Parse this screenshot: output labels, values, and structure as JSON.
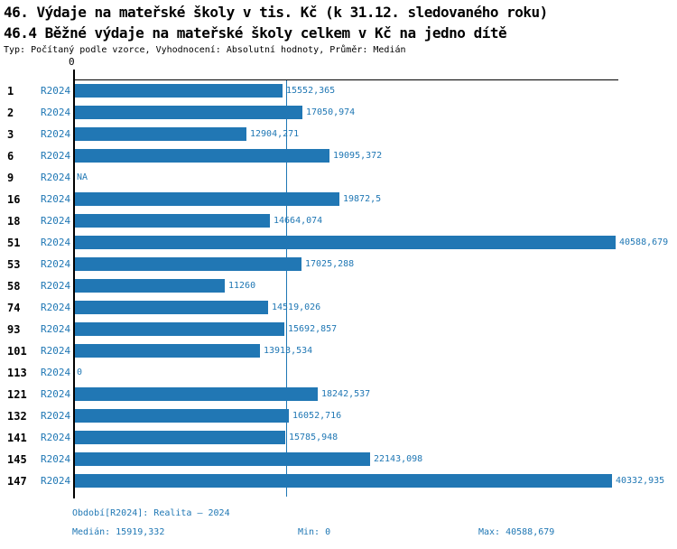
{
  "header": {
    "title": "46. Výdaje na mateřské školy v tis. Kč (k 31.12. sledovaného roku)",
    "subtitle": "46.4 Běžné výdaje na mateřské školy celkem v Kč na jedno dítě",
    "meta": "Typ: Počítaný podle vzorce, Vyhodnocení: Absolutní hodnoty, Průměr: Medián"
  },
  "chart_data": {
    "type": "bar",
    "orientation": "horizontal",
    "axis_zero_label": "0",
    "xlim": [
      0,
      40588.679
    ],
    "median_value": 15919.332,
    "grid": false,
    "legend": "none",
    "series_name": "R2024",
    "categories": [
      "1",
      "2",
      "3",
      "6",
      "9",
      "16",
      "18",
      "51",
      "53",
      "58",
      "74",
      "93",
      "101",
      "113",
      "121",
      "132",
      "141",
      "145",
      "147"
    ],
    "rows": [
      {
        "category": "1",
        "series": "R2024",
        "value": 15552.365,
        "label": "15552,365"
      },
      {
        "category": "2",
        "series": "R2024",
        "value": 17050.974,
        "label": "17050,974"
      },
      {
        "category": "3",
        "series": "R2024",
        "value": 12904.271,
        "label": "12904,271"
      },
      {
        "category": "6",
        "series": "R2024",
        "value": 19095.372,
        "label": "19095,372"
      },
      {
        "category": "9",
        "series": "R2024",
        "value": null,
        "label": "NA"
      },
      {
        "category": "16",
        "series": "R2024",
        "value": 19872.5,
        "label": "19872,5"
      },
      {
        "category": "18",
        "series": "R2024",
        "value": 14664.074,
        "label": "14664,074"
      },
      {
        "category": "51",
        "series": "R2024",
        "value": 40588.679,
        "label": "40588,679"
      },
      {
        "category": "53",
        "series": "R2024",
        "value": 17025.288,
        "label": "17025,288"
      },
      {
        "category": "58",
        "series": "R2024",
        "value": 11260,
        "label": "11260"
      },
      {
        "category": "74",
        "series": "R2024",
        "value": 14519.026,
        "label": "14519,026"
      },
      {
        "category": "93",
        "series": "R2024",
        "value": 15692.857,
        "label": "15692,857"
      },
      {
        "category": "101",
        "series": "R2024",
        "value": 13913.534,
        "label": "13913,534"
      },
      {
        "category": "113",
        "series": "R2024",
        "value": 0,
        "label": "0"
      },
      {
        "category": "121",
        "series": "R2024",
        "value": 18242.537,
        "label": "18242,537"
      },
      {
        "category": "132",
        "series": "R2024",
        "value": 16052.716,
        "label": "16052,716"
      },
      {
        "category": "141",
        "series": "R2024",
        "value": 15785.948,
        "label": "15785,948"
      },
      {
        "category": "145",
        "series": "R2024",
        "value": 22143.098,
        "label": "22143,098"
      },
      {
        "category": "147",
        "series": "R2024",
        "value": 40332.935,
        "label": "40332,935"
      }
    ]
  },
  "footer": {
    "period": "Období[R2024]: Realita – 2024",
    "median": "Medián: 15919,332",
    "min": "Min: 0",
    "max": "Max: 40588,679"
  },
  "colors": {
    "bar": "#2177b4",
    "text_blue": "#1f77b4",
    "axis": "#000000",
    "median_line": "#1f77b4",
    "background": "#ffffff"
  }
}
